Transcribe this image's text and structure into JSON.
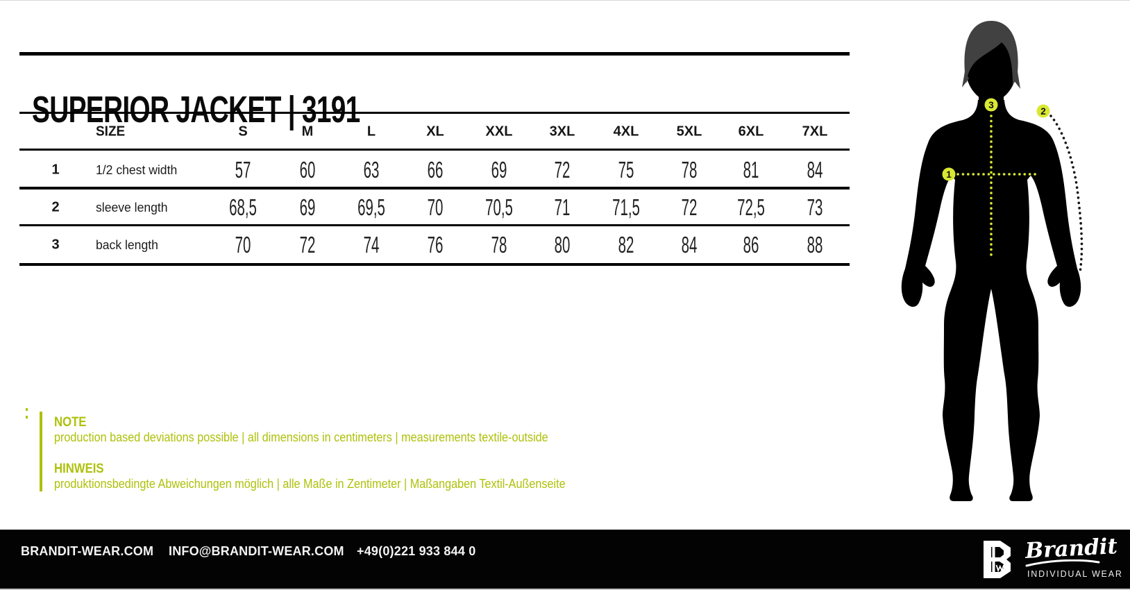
{
  "title": "SUPERIOR JACKET | 3191",
  "table": {
    "size_label": "SIZE",
    "sizes": [
      "S",
      "M",
      "L",
      "XL",
      "XXL",
      "3XL",
      "4XL",
      "5XL",
      "6XL",
      "7XL"
    ],
    "rows": [
      {
        "num": "1",
        "label": "1/2 chest width",
        "values": [
          "57",
          "60",
          "63",
          "66",
          "69",
          "72",
          "75",
          "78",
          "81",
          "84"
        ]
      },
      {
        "num": "2",
        "label": "sleeve length",
        "values": [
          "68,5",
          "69",
          "69,5",
          "70",
          "70,5",
          "71",
          "71,5",
          "72",
          "72,5",
          "73"
        ]
      },
      {
        "num": "3",
        "label": "back length",
        "values": [
          "70",
          "72",
          "74",
          "76",
          "78",
          "80",
          "82",
          "84",
          "86",
          "88"
        ]
      }
    ]
  },
  "note": {
    "heading_en": "NOTE",
    "text_en": "production based deviations possible | all dimensions in centimeters  |  measurements textile-outside",
    "heading_de": "HINWEIS",
    "text_de": "produktionsbedingte Abweichungen möglich | alle Maße in Zentimeter |  Maßangaben Textil-Außenseite"
  },
  "figure": {
    "markers": [
      "1",
      "2",
      "3"
    ]
  },
  "footer": {
    "website": "BRANDIT-WEAR.COM",
    "email": "INFO@BRANDIT-WEAR.COM",
    "phone": "+49(0)221 933 844 0",
    "brand": "Brandit",
    "brand_sub": "INDIVIDUAL WEAR"
  },
  "colors": {
    "accent_text": "#aec10a",
    "badge": "#d9e833",
    "ink": "#0b0b0b"
  }
}
